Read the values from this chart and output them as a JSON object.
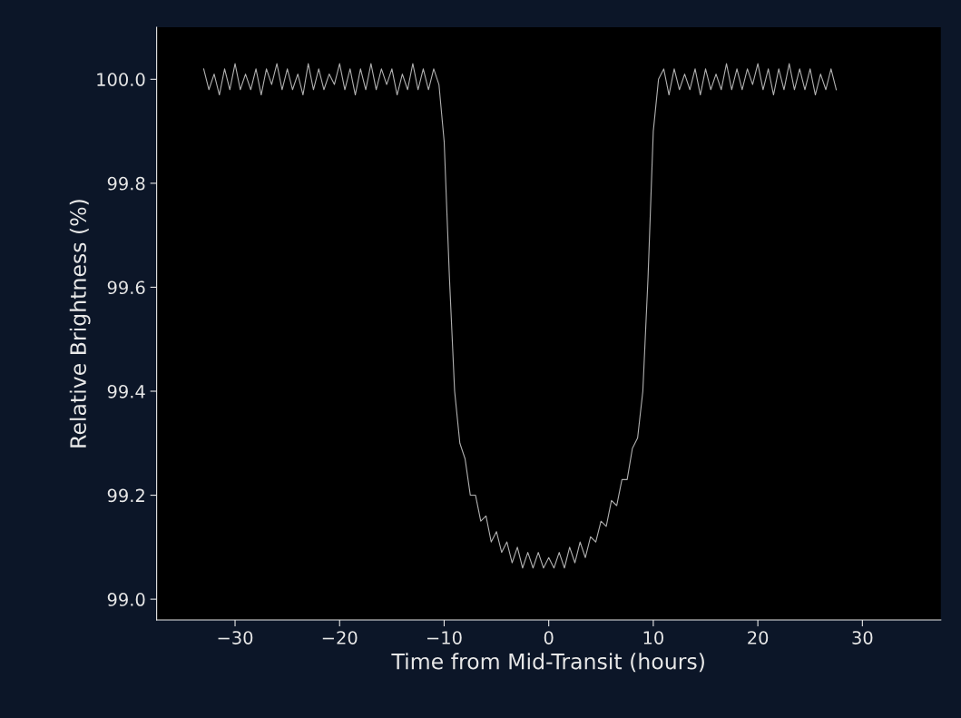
{
  "chart_data": {
    "type": "line",
    "xlabel": "Time from Mid-Transit (hours)",
    "ylabel": "Relative Brightness (%)",
    "xlim": [
      -37.5,
      37.5
    ],
    "ylim": [
      98.96,
      100.1
    ],
    "xticks": [
      {
        "value": -30,
        "label": "−30"
      },
      {
        "value": -20,
        "label": "−20"
      },
      {
        "value": -10,
        "label": "−10"
      },
      0,
      10,
      20,
      30
    ],
    "yticks": [
      {
        "value": 99.0,
        "label": "99.0"
      },
      {
        "value": 99.2,
        "label": "99.2"
      },
      {
        "value": 99.4,
        "label": "99.4"
      },
      {
        "value": 99.6,
        "label": "99.6"
      },
      {
        "value": 99.8,
        "label": "99.8"
      },
      {
        "value": 100.0,
        "label": "100.0"
      }
    ],
    "grid": false,
    "marker": "none",
    "line_style": "solid",
    "series": [
      {
        "color": "#b0b0b0",
        "x": [
          -33,
          -32.5,
          -32,
          -31.5,
          -31,
          -30.5,
          -30,
          -29.5,
          -29,
          -28.5,
          -28,
          -27.5,
          -27,
          -26.5,
          -26,
          -25.5,
          -25,
          -24.5,
          -24,
          -23.5,
          -23,
          -22.5,
          -22,
          -21.5,
          -21,
          -20.5,
          -20,
          -19.5,
          -19,
          -18.5,
          -18,
          -17.5,
          -17,
          -16.5,
          -16,
          -15.5,
          -15,
          -14.5,
          -14,
          -13.5,
          -13,
          -12.5,
          -12,
          -11.5,
          -11,
          -10.5,
          -10,
          -9.5,
          -9,
          -8.5,
          -8,
          -7.5,
          -7,
          -6.5,
          -6,
          -5.5,
          -5,
          -4.5,
          -4,
          -3.5,
          -3,
          -2.5,
          -2,
          -1.5,
          -1,
          -0.5,
          0,
          0.5,
          1,
          1.5,
          2,
          2.5,
          3,
          3.5,
          4,
          4.5,
          5,
          5.5,
          6,
          6.5,
          7,
          7.5,
          8,
          8.5,
          9,
          9.5,
          10,
          10.5,
          11,
          11.5,
          12,
          12.5,
          13,
          13.5,
          14,
          14.5,
          15,
          15.5,
          16,
          16.5,
          17,
          17.5,
          18,
          18.5,
          19,
          19.5,
          20,
          20.5,
          21,
          21.5,
          22,
          22.5,
          23,
          23.5,
          24,
          24.5,
          25,
          25.5,
          26,
          26.5,
          27,
          27.5
        ],
        "values": [
          100.02,
          99.98,
          100.01,
          99.97,
          100.02,
          99.98,
          100.03,
          99.98,
          100.01,
          99.98,
          100.02,
          99.97,
          100.02,
          99.99,
          100.03,
          99.98,
          100.02,
          99.98,
          100.01,
          99.97,
          100.03,
          99.98,
          100.02,
          99.98,
          100.01,
          99.99,
          100.03,
          99.98,
          100.02,
          99.97,
          100.02,
          99.98,
          100.03,
          99.98,
          100.02,
          99.99,
          100.02,
          99.97,
          100.01,
          99.98,
          100.03,
          99.98,
          100.02,
          99.98,
          100.02,
          99.99,
          99.88,
          99.62,
          99.4,
          99.3,
          99.27,
          99.2,
          99.2,
          99.15,
          99.16,
          99.11,
          99.13,
          99.09,
          99.11,
          99.07,
          99.1,
          99.06,
          99.09,
          99.06,
          99.09,
          99.06,
          99.08,
          99.06,
          99.09,
          99.06,
          99.1,
          99.07,
          99.11,
          99.08,
          99.12,
          99.11,
          99.15,
          99.14,
          99.19,
          99.18,
          99.23,
          99.23,
          99.29,
          99.31,
          99.4,
          99.62,
          99.9,
          100.0,
          100.02,
          99.97,
          100.02,
          99.98,
          100.01,
          99.98,
          100.02,
          99.97,
          100.02,
          99.98,
          100.01,
          99.98,
          100.03,
          99.98,
          100.02,
          99.98,
          100.02,
          99.99,
          100.03,
          99.98,
          100.02,
          99.97,
          100.02,
          99.98,
          100.03,
          99.98,
          100.02,
          99.98,
          100.02,
          99.97,
          100.01,
          99.98,
          100.02,
          99.98
        ]
      }
    ]
  }
}
